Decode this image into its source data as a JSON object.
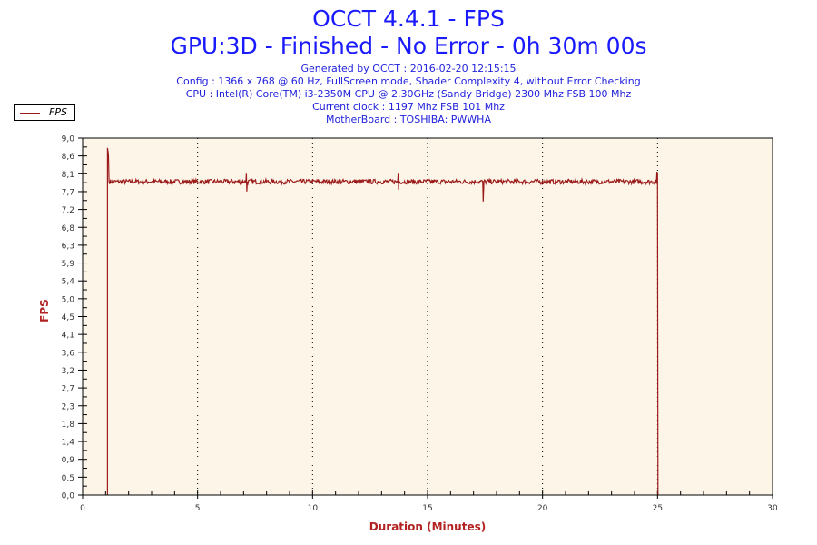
{
  "title": "OCCT 4.4.1 - FPS",
  "subtitle": "GPU:3D - Finished - No Error - 0h 30m 00s",
  "info": [
    "Generated by OCCT : 2016-02-20 12:15:15",
    "Config : 1366 x 768 @ 60 Hz, FullScreen mode, Shader Complexity 4, without Error Checking",
    "CPU : Intel(R) Core(TM) i3-2350M CPU @ 2.30GHz (Sandy Bridge) 2300 Mhz FSB 100 Mhz",
    "Current clock : 1197 Mhz FSB 101 Mhz",
    "MotherBoard : TOSHIBA: PWWHA"
  ],
  "chart_data": {
    "type": "line",
    "title": "OCCT 4.4.1 - FPS",
    "xlabel": "Duration (Minutes)",
    "ylabel": "FPS",
    "xlim": [
      0,
      30
    ],
    "ylim": [
      0,
      9
    ],
    "x_ticks": [
      "0",
      "5",
      "10",
      "15",
      "20",
      "25",
      "30"
    ],
    "y_ticks": [
      "0,0",
      "0,5",
      "0,9",
      "1,4",
      "1,8",
      "2,3",
      "2,7",
      "3,2",
      "3,6",
      "4,1",
      "4,5",
      "5,0",
      "5,4",
      "5,9",
      "6,3",
      "6,8",
      "7,2",
      "7,7",
      "8,1",
      "8,6",
      "9,0"
    ],
    "grid": "vertical dotted every 5 minutes",
    "legend": {
      "position": "top-left",
      "entries": [
        "FPS"
      ]
    },
    "series": [
      {
        "name": "FPS",
        "color": "#9b1b1b",
        "baseline": 7.9,
        "noise": 0.06,
        "points": [
          [
            1.08,
            0
          ],
          [
            1.08,
            8.75
          ],
          [
            1.12,
            8.6
          ],
          [
            1.15,
            7.9
          ],
          [
            7.1,
            7.9
          ],
          [
            7.12,
            8.1
          ],
          [
            7.14,
            7.65
          ],
          [
            7.16,
            7.9
          ],
          [
            13.7,
            7.9
          ],
          [
            13.72,
            8.1
          ],
          [
            13.74,
            7.7
          ],
          [
            13.76,
            7.9
          ],
          [
            17.4,
            7.9
          ],
          [
            17.42,
            7.4
          ],
          [
            17.45,
            7.9
          ],
          [
            24.95,
            7.85
          ],
          [
            24.97,
            8.15
          ],
          [
            25.0,
            8.1
          ],
          [
            25.02,
            0
          ]
        ]
      }
    ],
    "plot_background": "#fdf6e8"
  }
}
